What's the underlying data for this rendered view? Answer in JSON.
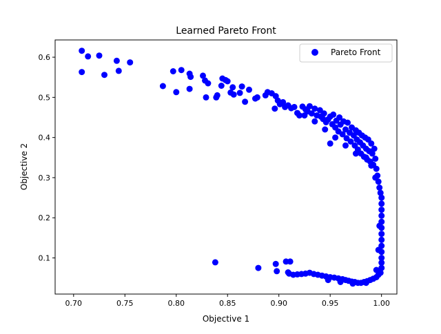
{
  "chart_data": {
    "type": "scatter",
    "title": "Learned Pareto Front",
    "xlabel": "Objective 1",
    "ylabel": "Objective 2",
    "xlim": [
      0.682,
      1.015
    ],
    "ylim": [
      0.01,
      0.643
    ],
    "x_ticks": [
      0.7,
      0.75,
      0.8,
      0.85,
      0.9,
      0.95,
      1.0
    ],
    "x_tick_labels": [
      "0.70",
      "0.75",
      "0.80",
      "0.85",
      "0.90",
      "0.95",
      "1.00"
    ],
    "y_ticks": [
      0.1,
      0.2,
      0.3,
      0.4,
      0.5,
      0.6
    ],
    "y_tick_labels": [
      "0.1",
      "0.2",
      "0.3",
      "0.4",
      "0.5",
      "0.6"
    ],
    "grid": false,
    "legend_position": "upper right",
    "marker": "circle",
    "series": [
      {
        "name": "Pareto Front",
        "color": "#0000ff",
        "points": [
          [
            0.708,
            0.616
          ],
          [
            0.714,
            0.602
          ],
          [
            0.725,
            0.604
          ],
          [
            0.708,
            0.563
          ],
          [
            0.73,
            0.556
          ],
          [
            0.742,
            0.591
          ],
          [
            0.744,
            0.566
          ],
          [
            0.755,
            0.587
          ],
          [
            0.787,
            0.528
          ],
          [
            0.797,
            0.565
          ],
          [
            0.8,
            0.513
          ],
          [
            0.805,
            0.568
          ],
          [
            0.813,
            0.559
          ],
          [
            0.814,
            0.551
          ],
          [
            0.813,
            0.521
          ],
          [
            0.826,
            0.554
          ],
          [
            0.828,
            0.542
          ],
          [
            0.831,
            0.535
          ],
          [
            0.829,
            0.5
          ],
          [
            0.839,
            0.5
          ],
          [
            0.84,
            0.505
          ],
          [
            0.844,
            0.529
          ],
          [
            0.845,
            0.547
          ],
          [
            0.848,
            0.543
          ],
          [
            0.85,
            0.54
          ],
          [
            0.853,
            0.512
          ],
          [
            0.855,
            0.525
          ],
          [
            0.856,
            0.507
          ],
          [
            0.862,
            0.511
          ],
          [
            0.864,
            0.527
          ],
          [
            0.867,
            0.489
          ],
          [
            0.871,
            0.519
          ],
          [
            0.877,
            0.497
          ],
          [
            0.879,
            0.5
          ],
          [
            0.887,
            0.505
          ],
          [
            0.889,
            0.513
          ],
          [
            0.893,
            0.51
          ],
          [
            0.896,
            0.472
          ],
          [
            0.897,
            0.503
          ],
          [
            0.899,
            0.492
          ],
          [
            0.901,
            0.483
          ],
          [
            0.904,
            0.488
          ],
          [
            0.906,
            0.476
          ],
          [
            0.909,
            0.48
          ],
          [
            0.912,
            0.473
          ],
          [
            0.915,
            0.476
          ],
          [
            0.918,
            0.461
          ],
          [
            0.92,
            0.455
          ],
          [
            0.923,
            0.477
          ],
          [
            0.926,
            0.47
          ],
          [
            0.928,
            0.465
          ],
          [
            0.93,
            0.478
          ],
          [
            0.932,
            0.46
          ],
          [
            0.935,
            0.472
          ],
          [
            0.937,
            0.455
          ],
          [
            0.94,
            0.468
          ],
          [
            0.941,
            0.452
          ],
          [
            0.943,
            0.446
          ],
          [
            0.944,
            0.46
          ],
          [
            0.946,
            0.438
          ],
          [
            0.948,
            0.445
          ],
          [
            0.95,
            0.452
          ],
          [
            0.952,
            0.433
          ],
          [
            0.953,
            0.457
          ],
          [
            0.955,
            0.425
          ],
          [
            0.956,
            0.442
          ],
          [
            0.958,
            0.415
          ],
          [
            0.959,
            0.45
          ],
          [
            0.96,
            0.432
          ],
          [
            0.962,
            0.408
          ],
          [
            0.963,
            0.44
          ],
          [
            0.965,
            0.42
          ],
          [
            0.966,
            0.398
          ],
          [
            0.967,
            0.437
          ],
          [
            0.969,
            0.412
          ],
          [
            0.97,
            0.39
          ],
          [
            0.971,
            0.425
          ],
          [
            0.973,
            0.405
          ],
          [
            0.974,
            0.38
          ],
          [
            0.975,
            0.418
          ],
          [
            0.976,
            0.395
          ],
          [
            0.977,
            0.37
          ],
          [
            0.978,
            0.412
          ],
          [
            0.979,
            0.388
          ],
          [
            0.98,
            0.36
          ],
          [
            0.981,
            0.405
          ],
          [
            0.982,
            0.38
          ],
          [
            0.983,
            0.352
          ],
          [
            0.984,
            0.4
          ],
          [
            0.985,
            0.372
          ],
          [
            0.986,
            0.345
          ],
          [
            0.987,
            0.395
          ],
          [
            0.988,
            0.366
          ],
          [
            0.989,
            0.34
          ],
          [
            0.99,
            0.385
          ],
          [
            0.991,
            0.36
          ],
          [
            0.992,
            0.332
          ],
          [
            0.993,
            0.372
          ],
          [
            0.994,
            0.347
          ],
          [
            0.995,
            0.322
          ],
          [
            0.996,
            0.305
          ],
          [
            0.997,
            0.29
          ],
          [
            0.998,
            0.275
          ],
          [
            0.999,
            0.262
          ],
          [
            1.0,
            0.25
          ],
          [
            1.0,
            0.235
          ],
          [
            1.0,
            0.22
          ],
          [
            1.0,
            0.205
          ],
          [
            1.0,
            0.19
          ],
          [
            1.0,
            0.175
          ],
          [
            1.0,
            0.16
          ],
          [
            1.0,
            0.145
          ],
          [
            1.0,
            0.13
          ],
          [
            1.0,
            0.115
          ],
          [
            1.0,
            0.1
          ],
          [
            1.0,
            0.088
          ],
          [
            1.0,
            0.075
          ],
          [
            0.999,
            0.063
          ],
          [
            0.997,
            0.058
          ],
          [
            0.995,
            0.052
          ],
          [
            0.992,
            0.048
          ],
          [
            0.989,
            0.045
          ],
          [
            0.986,
            0.042
          ],
          [
            0.983,
            0.04
          ],
          [
            0.98,
            0.038
          ],
          [
            0.977,
            0.038
          ],
          [
            0.974,
            0.04
          ],
          [
            0.971,
            0.041
          ],
          [
            0.968,
            0.043
          ],
          [
            0.965,
            0.045
          ],
          [
            0.962,
            0.047
          ],
          [
            0.958,
            0.049
          ],
          [
            0.954,
            0.051
          ],
          [
            0.95,
            0.052
          ],
          [
            0.946,
            0.054
          ],
          [
            0.942,
            0.056
          ],
          [
            0.938,
            0.058
          ],
          [
            0.934,
            0.06
          ],
          [
            0.93,
            0.063
          ],
          [
            0.926,
            0.061
          ],
          [
            0.922,
            0.06
          ],
          [
            0.918,
            0.059
          ],
          [
            0.914,
            0.058
          ],
          [
            0.91,
            0.061
          ],
          [
            0.838,
            0.089
          ],
          [
            0.88,
            0.075
          ],
          [
            0.897,
            0.085
          ],
          [
            0.898,
            0.067
          ],
          [
            0.907,
            0.091
          ],
          [
            0.911,
            0.091
          ],
          [
            0.909,
            0.064
          ],
          [
            0.948,
            0.045
          ],
          [
            0.96,
            0.04
          ],
          [
            0.972,
            0.036
          ],
          [
            0.985,
            0.038
          ],
          [
            0.995,
            0.07
          ],
          [
            0.997,
            0.12
          ],
          [
            0.998,
            0.18
          ],
          [
            0.994,
            0.3
          ],
          [
            0.99,
            0.33
          ],
          [
            0.985,
            0.35
          ],
          [
            0.975,
            0.36
          ],
          [
            0.965,
            0.38
          ],
          [
            0.955,
            0.4
          ],
          [
            0.945,
            0.42
          ],
          [
            0.935,
            0.44
          ],
          [
            0.925,
            0.455
          ],
          [
            0.95,
            0.385
          ]
        ]
      }
    ]
  }
}
